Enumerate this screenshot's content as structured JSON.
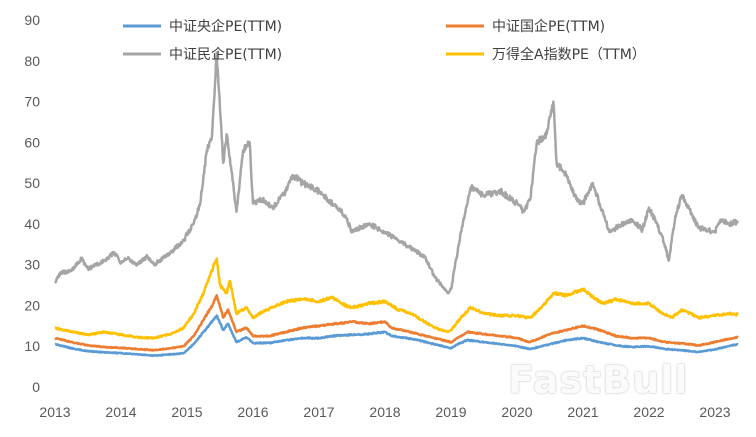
{
  "chart_data": {
    "type": "line",
    "title": "",
    "xlabel": "",
    "ylabel": "",
    "ylim": [
      0,
      90
    ],
    "xlim": [
      2013.0,
      2023.35
    ],
    "y_ticks": [
      "0",
      "10",
      "20",
      "30",
      "40",
      "50",
      "60",
      "70",
      "80",
      "90"
    ],
    "x_ticks": [
      "2013",
      "2014",
      "2015",
      "2016",
      "2017",
      "2018",
      "2019",
      "2020",
      "2021",
      "2022",
      "2023"
    ],
    "grid": false,
    "legend_position": "top",
    "series": [
      {
        "name": "中证央企PE(TTM)",
        "color": "#5B9BD5",
        "points": [
          [
            2013.0,
            10.5
          ],
          [
            2013.25,
            9.5
          ],
          [
            2013.5,
            8.8
          ],
          [
            2013.75,
            8.5
          ],
          [
            2014.0,
            8.3
          ],
          [
            2014.25,
            8.0
          ],
          [
            2014.5,
            7.7
          ],
          [
            2014.75,
            8.0
          ],
          [
            2014.95,
            8.3
          ],
          [
            2015.1,
            10.5
          ],
          [
            2015.25,
            13.5
          ],
          [
            2015.4,
            16.5
          ],
          [
            2015.45,
            17.5
          ],
          [
            2015.55,
            14.0
          ],
          [
            2015.62,
            15.5
          ],
          [
            2015.75,
            11.0
          ],
          [
            2015.9,
            12.2
          ],
          [
            2016.0,
            10.8
          ],
          [
            2016.25,
            10.8
          ],
          [
            2016.5,
            11.5
          ],
          [
            2016.75,
            12.0
          ],
          [
            2017.0,
            12.0
          ],
          [
            2017.25,
            12.6
          ],
          [
            2017.5,
            12.8
          ],
          [
            2017.75,
            13.0
          ],
          [
            2018.0,
            13.5
          ],
          [
            2018.1,
            12.5
          ],
          [
            2018.25,
            12.2
          ],
          [
            2018.5,
            11.5
          ],
          [
            2018.75,
            10.5
          ],
          [
            2019.0,
            9.5
          ],
          [
            2019.1,
            10.5
          ],
          [
            2019.25,
            11.5
          ],
          [
            2019.5,
            11.0
          ],
          [
            2019.75,
            10.5
          ],
          [
            2020.0,
            10.0
          ],
          [
            2020.2,
            9.3
          ],
          [
            2020.5,
            10.5
          ],
          [
            2020.75,
            11.5
          ],
          [
            2021.0,
            12.0
          ],
          [
            2021.25,
            11.0
          ],
          [
            2021.5,
            10.2
          ],
          [
            2021.75,
            9.8
          ],
          [
            2022.0,
            10.0
          ],
          [
            2022.25,
            9.3
          ],
          [
            2022.5,
            9.0
          ],
          [
            2022.75,
            8.6
          ],
          [
            2023.0,
            9.2
          ],
          [
            2023.2,
            10.0
          ],
          [
            2023.35,
            10.5
          ]
        ]
      },
      {
        "name": "中证国企PE(TTM)",
        "color": "#ED7D31",
        "points": [
          [
            2013.0,
            12.0
          ],
          [
            2013.25,
            11.0
          ],
          [
            2013.5,
            10.2
          ],
          [
            2013.75,
            9.8
          ],
          [
            2014.0,
            9.6
          ],
          [
            2014.25,
            9.3
          ],
          [
            2014.5,
            9.0
          ],
          [
            2014.75,
            9.5
          ],
          [
            2014.95,
            10.0
          ],
          [
            2015.1,
            12.5
          ],
          [
            2015.25,
            16.5
          ],
          [
            2015.4,
            20.5
          ],
          [
            2015.45,
            22.5
          ],
          [
            2015.55,
            17.0
          ],
          [
            2015.62,
            19.0
          ],
          [
            2015.75,
            13.5
          ],
          [
            2015.9,
            14.5
          ],
          [
            2016.0,
            12.5
          ],
          [
            2016.25,
            12.5
          ],
          [
            2016.5,
            13.5
          ],
          [
            2016.75,
            14.5
          ],
          [
            2017.0,
            15.0
          ],
          [
            2017.25,
            15.5
          ],
          [
            2017.5,
            16.0
          ],
          [
            2017.75,
            15.5
          ],
          [
            2018.0,
            16.0
          ],
          [
            2018.1,
            14.5
          ],
          [
            2018.25,
            14.0
          ],
          [
            2018.5,
            13.0
          ],
          [
            2018.75,
            12.0
          ],
          [
            2019.0,
            11.0
          ],
          [
            2019.1,
            12.0
          ],
          [
            2019.25,
            13.5
          ],
          [
            2019.5,
            13.0
          ],
          [
            2019.75,
            12.5
          ],
          [
            2020.0,
            12.0
          ],
          [
            2020.2,
            11.0
          ],
          [
            2020.5,
            13.0
          ],
          [
            2020.75,
            14.0
          ],
          [
            2021.0,
            15.0
          ],
          [
            2021.25,
            14.0
          ],
          [
            2021.5,
            12.5
          ],
          [
            2021.75,
            12.0
          ],
          [
            2022.0,
            12.0
          ],
          [
            2022.25,
            11.0
          ],
          [
            2022.5,
            10.7
          ],
          [
            2022.75,
            10.2
          ],
          [
            2023.0,
            11.0
          ],
          [
            2023.2,
            11.8
          ],
          [
            2023.35,
            12.2
          ]
        ]
      },
      {
        "name": "中证民企PE(TTM)",
        "color": "#A5A5A5",
        "points": [
          [
            2013.0,
            25.5
          ],
          [
            2013.08,
            28.0
          ],
          [
            2013.25,
            28.5
          ],
          [
            2013.4,
            31.5
          ],
          [
            2013.5,
            29.0
          ],
          [
            2013.75,
            31.0
          ],
          [
            2013.9,
            33.0
          ],
          [
            2014.0,
            30.5
          ],
          [
            2014.1,
            31.5
          ],
          [
            2014.25,
            30.0
          ],
          [
            2014.4,
            32.0
          ],
          [
            2014.5,
            30.0
          ],
          [
            2014.75,
            33.0
          ],
          [
            2014.95,
            36.0
          ],
          [
            2015.1,
            40.0
          ],
          [
            2015.2,
            45.0
          ],
          [
            2015.3,
            58.0
          ],
          [
            2015.38,
            62.0
          ],
          [
            2015.45,
            82.0
          ],
          [
            2015.5,
            68.0
          ],
          [
            2015.55,
            55.0
          ],
          [
            2015.6,
            62.0
          ],
          [
            2015.7,
            50.0
          ],
          [
            2015.75,
            43.0
          ],
          [
            2015.85,
            58.0
          ],
          [
            2015.95,
            60.0
          ],
          [
            2016.0,
            45.0
          ],
          [
            2016.15,
            46.0
          ],
          [
            2016.3,
            44.0
          ],
          [
            2016.5,
            48.0
          ],
          [
            2016.6,
            52.0
          ],
          [
            2016.75,
            50.0
          ],
          [
            2017.0,
            48.0
          ],
          [
            2017.2,
            45.0
          ],
          [
            2017.4,
            42.0
          ],
          [
            2017.5,
            38.0
          ],
          [
            2017.75,
            40.0
          ],
          [
            2018.0,
            38.0
          ],
          [
            2018.2,
            36.0
          ],
          [
            2018.4,
            34.0
          ],
          [
            2018.6,
            32.0
          ],
          [
            2018.75,
            27.0
          ],
          [
            2018.85,
            25.0
          ],
          [
            2018.95,
            23.0
          ],
          [
            2019.0,
            24.0
          ],
          [
            2019.15,
            38.0
          ],
          [
            2019.25,
            45.0
          ],
          [
            2019.3,
            49.0
          ],
          [
            2019.5,
            47.0
          ],
          [
            2019.75,
            48.0
          ],
          [
            2020.0,
            45.0
          ],
          [
            2020.1,
            43.0
          ],
          [
            2020.2,
            46.0
          ],
          [
            2020.3,
            60.0
          ],
          [
            2020.45,
            62.0
          ],
          [
            2020.55,
            70.0
          ],
          [
            2020.6,
            55.0
          ],
          [
            2020.75,
            52.0
          ],
          [
            2020.9,
            46.0
          ],
          [
            2021.0,
            45.0
          ],
          [
            2021.15,
            50.0
          ],
          [
            2021.25,
            45.0
          ],
          [
            2021.4,
            38.0
          ],
          [
            2021.6,
            40.0
          ],
          [
            2021.75,
            41.0
          ],
          [
            2021.9,
            38.5
          ],
          [
            2022.0,
            44.0
          ],
          [
            2022.2,
            37.0
          ],
          [
            2022.3,
            31.0
          ],
          [
            2022.4,
            42.0
          ],
          [
            2022.5,
            47.0
          ],
          [
            2022.75,
            39.0
          ],
          [
            2023.0,
            38.0
          ],
          [
            2023.1,
            41.0
          ],
          [
            2023.2,
            40.0
          ],
          [
            2023.35,
            40.5
          ]
        ]
      },
      {
        "name": "万得全A指数PE（TTM）",
        "color": "#FFC000",
        "points": [
          [
            2013.0,
            14.5
          ],
          [
            2013.25,
            13.5
          ],
          [
            2013.5,
            12.8
          ],
          [
            2013.75,
            13.5
          ],
          [
            2014.0,
            12.8
          ],
          [
            2014.25,
            12.2
          ],
          [
            2014.5,
            12.0
          ],
          [
            2014.75,
            13.0
          ],
          [
            2014.95,
            14.5
          ],
          [
            2015.1,
            18.0
          ],
          [
            2015.25,
            23.0
          ],
          [
            2015.35,
            27.5
          ],
          [
            2015.45,
            31.5
          ],
          [
            2015.5,
            25.0
          ],
          [
            2015.6,
            23.0
          ],
          [
            2015.65,
            26.0
          ],
          [
            2015.75,
            18.0
          ],
          [
            2015.9,
            19.5
          ],
          [
            2016.0,
            17.0
          ],
          [
            2016.15,
            18.5
          ],
          [
            2016.3,
            19.5
          ],
          [
            2016.5,
            21.0
          ],
          [
            2016.75,
            21.5
          ],
          [
            2017.0,
            21.0
          ],
          [
            2017.2,
            22.0
          ],
          [
            2017.4,
            20.0
          ],
          [
            2017.5,
            19.5
          ],
          [
            2017.75,
            20.5
          ],
          [
            2018.0,
            21.0
          ],
          [
            2018.2,
            19.0
          ],
          [
            2018.4,
            18.0
          ],
          [
            2018.6,
            16.0
          ],
          [
            2018.75,
            14.5
          ],
          [
            2018.95,
            13.5
          ],
          [
            2019.0,
            14.0
          ],
          [
            2019.15,
            17.0
          ],
          [
            2019.3,
            19.5
          ],
          [
            2019.5,
            18.0
          ],
          [
            2019.75,
            17.5
          ],
          [
            2020.0,
            17.5
          ],
          [
            2020.2,
            17.0
          ],
          [
            2020.4,
            20.0
          ],
          [
            2020.55,
            23.0
          ],
          [
            2020.75,
            22.5
          ],
          [
            2021.0,
            24.0
          ],
          [
            2021.15,
            22.0
          ],
          [
            2021.3,
            20.5
          ],
          [
            2021.5,
            21.5
          ],
          [
            2021.75,
            20.5
          ],
          [
            2022.0,
            20.5
          ],
          [
            2022.2,
            18.0
          ],
          [
            2022.35,
            17.0
          ],
          [
            2022.5,
            19.0
          ],
          [
            2022.75,
            17.0
          ],
          [
            2023.0,
            17.5
          ],
          [
            2023.2,
            18.0
          ],
          [
            2023.35,
            17.8
          ]
        ]
      }
    ]
  },
  "watermark": {
    "text": "FastBull"
  }
}
